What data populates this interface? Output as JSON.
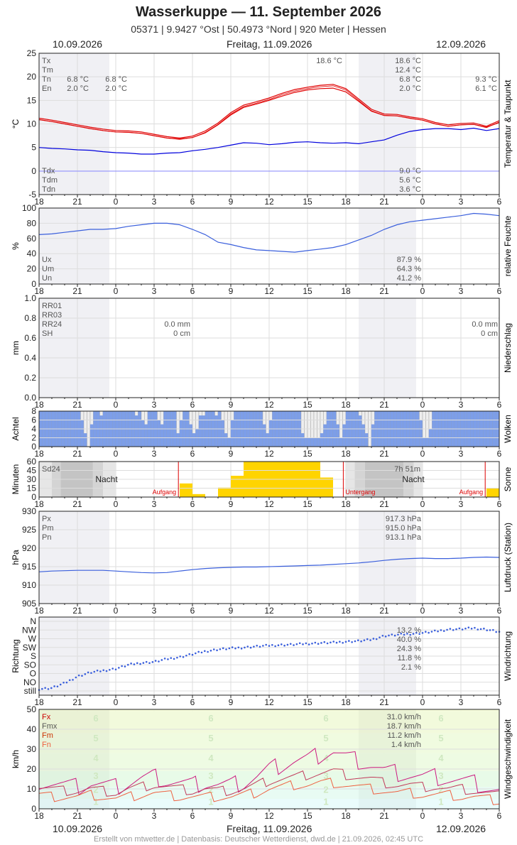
{
  "header": {
    "title": "Wasserkuppe  —  11. September 2026",
    "subtitle": "05371  |  9.9427 °Ost  |  50.4973 °Nord  |  920 Meter  |  Hessen",
    "date_left": "10.09.2026",
    "date_center": "Freitag, 11.09.2026",
    "date_right": "12.09.2026"
  },
  "footer": "Erstellt von mtwetter.de | Datenbasis: Deutscher Wetterdienst, dwd.de | 21.09.2026, 02:45 UTC",
  "x_ticks": [
    "18",
    "21",
    "0",
    "3",
    "6",
    "9",
    "12",
    "15",
    "18",
    "21",
    "0",
    "3",
    "6"
  ],
  "chart_data": [
    {
      "id": "temp",
      "type": "line",
      "side_label": "Temperatur & Taupunkt",
      "ylabel": "°C",
      "ylim": [
        -5,
        25
      ],
      "yticks": [
        "25",
        "20",
        "15",
        "10",
        "5",
        "0",
        "-5"
      ],
      "x_hours": [
        0,
        1,
        2,
        3,
        4,
        5,
        6,
        7,
        8,
        9,
        10,
        11,
        12,
        13,
        14,
        15,
        16,
        17,
        18,
        19,
        20,
        21,
        22,
        23,
        24,
        25,
        26,
        27,
        28,
        29,
        30,
        31,
        32,
        33,
        34,
        35,
        36
      ],
      "series": [
        {
          "name": "Tx",
          "color": "#e00000",
          "values": [
            11.2,
            10.8,
            10.3,
            9.8,
            9.3,
            8.9,
            8.6,
            8.5,
            8.3,
            7.8,
            7.3,
            7.0,
            7.4,
            8.5,
            10.2,
            12.4,
            14.0,
            14.7,
            15.5,
            16.5,
            17.3,
            17.8,
            18.2,
            18.4,
            17.5,
            15.3,
            13.1,
            12.1,
            12.0,
            11.5,
            11.1,
            10.3,
            9.8,
            10.1,
            10.2,
            9.5,
            10.7
          ]
        },
        {
          "name": "Tm",
          "color": "#e00000",
          "values": [
            10.9,
            10.5,
            10.0,
            9.5,
            9.0,
            8.6,
            8.3,
            8.2,
            8.0,
            7.5,
            7.0,
            6.8,
            7.1,
            8.1,
            9.8,
            11.9,
            13.5,
            14.2,
            15.0,
            15.9,
            16.7,
            17.2,
            17.5,
            17.6,
            16.8,
            14.8,
            12.7,
            11.8,
            11.7,
            11.2,
            10.8,
            10.0,
            9.5,
            9.8,
            9.9,
            9.3,
            10.3
          ]
        },
        {
          "name": "Td",
          "color": "#0000dd",
          "values": [
            5.0,
            4.8,
            4.7,
            4.5,
            4.4,
            4.1,
            3.9,
            3.8,
            3.6,
            3.6,
            3.8,
            3.9,
            4.3,
            4.6,
            5.0,
            5.5,
            6.0,
            5.9,
            5.6,
            5.8,
            6.1,
            6.2,
            6.0,
            5.9,
            6.0,
            5.8,
            6.2,
            6.6,
            7.6,
            8.4,
            8.8,
            9.0,
            9.0,
            8.8,
            9.1,
            8.6,
            9.0
          ]
        }
      ],
      "labels_top_left": [
        "Tx",
        "Tm",
        "Tn",
        "En"
      ],
      "labels_bottom_left": [
        "Tdx",
        "Tdm",
        "Tdn"
      ],
      "annotations": [
        {
          "x_hour": 4,
          "values": [
            "6.8 °C",
            "2.0 °C"
          ]
        },
        {
          "x_hour": 7,
          "values": [
            "6.8 °C",
            "2.0 °C"
          ]
        },
        {
          "x_hour": 24,
          "values": [
            "18.6 °C"
          ]
        },
        {
          "x_hour": 30,
          "values": [
            "18.6 °C",
            "12.4 °C",
            "6.8 °C",
            "2.0 °C"
          ]
        },
        {
          "x_hour": 36,
          "values": [
            "9.3 °C",
            "6.1 °C"
          ]
        }
      ],
      "bottom_values": [
        "9.0 °C",
        "5.6 °C",
        "3.6 °C"
      ]
    },
    {
      "id": "humidity",
      "type": "line",
      "side_label": "relative Feuchte",
      "ylabel": "%",
      "ylim": [
        0,
        100
      ],
      "yticks": [
        "100",
        "80",
        "60",
        "40",
        "20",
        "0"
      ],
      "series": [
        {
          "name": "U",
          "color": "#3a5fdc",
          "values": [
            65,
            66,
            68,
            70,
            72,
            72,
            73,
            76,
            78,
            80,
            80,
            78,
            72,
            65,
            55,
            52,
            48,
            45,
            44,
            43,
            42,
            44,
            46,
            48,
            52,
            58,
            64,
            72,
            78,
            82,
            84,
            86,
            88,
            90,
            93,
            92,
            90
          ]
        }
      ],
      "labels_left": [
        "Ux",
        "Um",
        "Un"
      ],
      "values_right": [
        "87.9 %",
        "64.3 %",
        "41.2 %"
      ]
    },
    {
      "id": "precip",
      "type": "bar",
      "side_label": "Niederschlag",
      "ylabel": "mm",
      "ylim": [
        0,
        1
      ],
      "yticks": [
        "1.0",
        "0.8",
        "0.6",
        "0.4",
        "0.2",
        "0.0"
      ],
      "labels_left": [
        "RR01",
        "RR03",
        "RR24",
        "SH"
      ],
      "values_day1": [
        "0.0 mm",
        "0 cm"
      ],
      "values_day2": [
        "0.0 mm",
        "0 cm"
      ]
    },
    {
      "id": "clouds",
      "type": "bar",
      "side_label": "Wolken",
      "ylabel": "Achtel",
      "ylim": [
        0,
        8
      ],
      "yticks": [
        "8",
        "6",
        "4",
        "2",
        "0"
      ],
      "values": [
        8,
        8,
        8,
        8,
        8,
        8,
        8,
        8,
        8,
        8,
        8,
        8,
        8,
        6,
        3,
        0,
        5,
        8,
        8,
        7,
        8,
        8,
        8,
        8,
        8,
        8,
        8,
        8,
        8,
        8,
        7,
        8,
        6,
        5,
        8,
        8,
        8,
        6,
        5,
        8,
        8,
        8,
        8,
        3,
        6,
        8,
        8,
        5,
        3,
        4,
        7,
        7,
        8,
        8,
        8,
        7,
        8,
        6,
        3,
        2,
        6,
        8,
        8,
        8,
        8,
        8,
        8,
        8,
        8,
        8,
        5,
        3,
        6,
        8,
        8,
        8,
        8,
        8,
        8,
        8,
        8,
        8,
        3,
        2,
        2,
        2,
        2,
        2,
        3,
        5,
        8,
        8,
        8,
        5,
        2,
        5,
        8,
        8,
        8,
        8,
        7,
        5,
        3,
        0,
        5,
        8,
        8,
        8,
        8,
        8,
        8,
        8,
        8,
        8,
        8,
        8,
        8,
        8,
        8,
        6,
        2,
        2,
        4,
        8,
        8,
        8,
        8,
        8,
        8,
        8,
        8,
        8,
        8,
        8,
        8,
        8,
        8,
        8,
        8,
        8,
        8,
        8,
        8,
        8
      ]
    },
    {
      "id": "sun",
      "type": "bar",
      "side_label": "Sonne",
      "ylabel": "Minuten",
      "ylim": [
        0,
        60
      ],
      "yticks": [
        "60",
        "45",
        "30",
        "15",
        "0"
      ],
      "label_left": "Sd24",
      "sum_day2": "7h 51m",
      "night_label": "Nacht",
      "sunrise_label": "Aufgang",
      "sunset_label": "Untergang",
      "values": [
        0,
        0,
        0,
        0,
        0,
        0,
        0,
        0,
        0,
        0,
        0,
        23,
        5,
        0,
        16,
        36,
        60,
        60,
        60,
        60,
        60,
        60,
        33,
        0,
        0,
        0,
        0,
        0,
        0,
        0,
        0,
        0,
        0,
        0,
        0,
        15
      ]
    },
    {
      "id": "pressure",
      "type": "line",
      "side_label": "Luftdruck (Station)",
      "ylabel": "hPa",
      "ylim": [
        905,
        930
      ],
      "yticks": [
        "930",
        "925",
        "920",
        "915",
        "910",
        "905"
      ],
      "series": [
        {
          "name": "P",
          "color": "#3a5fdc",
          "values": [
            913.6,
            913.8,
            913.9,
            914.0,
            914.0,
            914.0,
            913.8,
            913.6,
            913.4,
            913.3,
            913.4,
            913.8,
            914.2,
            914.5,
            914.7,
            914.8,
            914.9,
            914.9,
            915.0,
            915.1,
            915.2,
            915.3,
            915.4,
            915.6,
            915.8,
            916.0,
            916.3,
            916.7,
            917.0,
            917.2,
            917.3,
            917.2,
            917.2,
            917.3,
            917.5,
            917.6,
            917.5
          ]
        }
      ],
      "labels_left": [
        "Px",
        "Pm",
        "Pn"
      ],
      "values_right": [
        "917.3 hPa",
        "915.0 hPa",
        "913.1 hPa"
      ]
    },
    {
      "id": "winddir",
      "type": "scatter",
      "side_label": "Windrichtung",
      "ylabel": "Richtung",
      "categories": [
        "N",
        "NW",
        "W",
        "SW",
        "S",
        "SO",
        "O",
        "NO",
        "still"
      ],
      "series": [
        {
          "name": "Richtung",
          "color": "#3a5fdc",
          "values_deg": [
            10,
            15,
            40,
            75,
            95,
            105,
            115,
            135,
            145,
            150,
            165,
            175,
            190,
            205,
            215,
            220,
            225,
            230,
            235,
            238,
            240,
            245,
            248,
            250,
            255,
            258,
            265,
            285,
            290,
            295,
            300,
            308,
            318,
            320,
            325,
            318,
            305
          ]
        }
      ],
      "values_right": [
        "13.2 %",
        "40.0 %",
        "24.3 %",
        "11.8 %",
        "2.1 %"
      ]
    },
    {
      "id": "wind",
      "type": "line",
      "side_label": "Windgeschwindigkeit",
      "ylabel": "km/h",
      "ylim": [
        0,
        50
      ],
      "yticks": [
        "50",
        "40",
        "30",
        "20",
        "10",
        "0"
      ],
      "beaufort_labels": [
        "6",
        "5",
        "4",
        "3",
        "2",
        "1"
      ],
      "series": [
        {
          "name": "Fx",
          "color": "#cc1a80",
          "values": [
            14,
            13,
            12,
            11,
            13,
            12,
            11,
            13,
            15,
            16,
            14,
            13,
            12,
            13,
            12,
            12,
            13,
            16,
            20,
            22,
            24,
            25,
            27,
            29,
            26,
            24,
            22,
            19,
            18,
            17,
            16,
            16,
            15,
            14,
            13,
            11,
            9
          ]
        },
        {
          "name": "Fmx",
          "color": "#c13a5a",
          "values": [
            11,
            10,
            9,
            9,
            10,
            9,
            8,
            10,
            11,
            12,
            11,
            10,
            9,
            10,
            9,
            9,
            10,
            12,
            14,
            15,
            16,
            17,
            18,
            19,
            17,
            16,
            15,
            13,
            12,
            12,
            11,
            11,
            10,
            10,
            9,
            8,
            7
          ]
        },
        {
          "name": "Fm",
          "color": "#ee6040",
          "values": [
            7,
            6,
            6,
            6,
            7,
            6,
            5,
            6,
            7,
            8,
            7,
            6,
            6,
            6,
            6,
            6,
            7,
            8,
            10,
            11,
            12,
            12,
            13,
            13,
            12,
            11,
            10,
            9,
            8,
            8,
            7,
            7,
            7,
            6,
            6,
            5,
            4
          ]
        }
      ],
      "labels_left": [
        "Fx",
        "Fmx",
        "Fm",
        "Fn"
      ],
      "label_colors": [
        "#cc0000",
        "#555555",
        "#cc3300",
        "#ee6040"
      ],
      "values_right": [
        "31.0 km/h",
        "18.7 km/h",
        "11.2 km/h",
        "1.4 km/h"
      ]
    }
  ]
}
